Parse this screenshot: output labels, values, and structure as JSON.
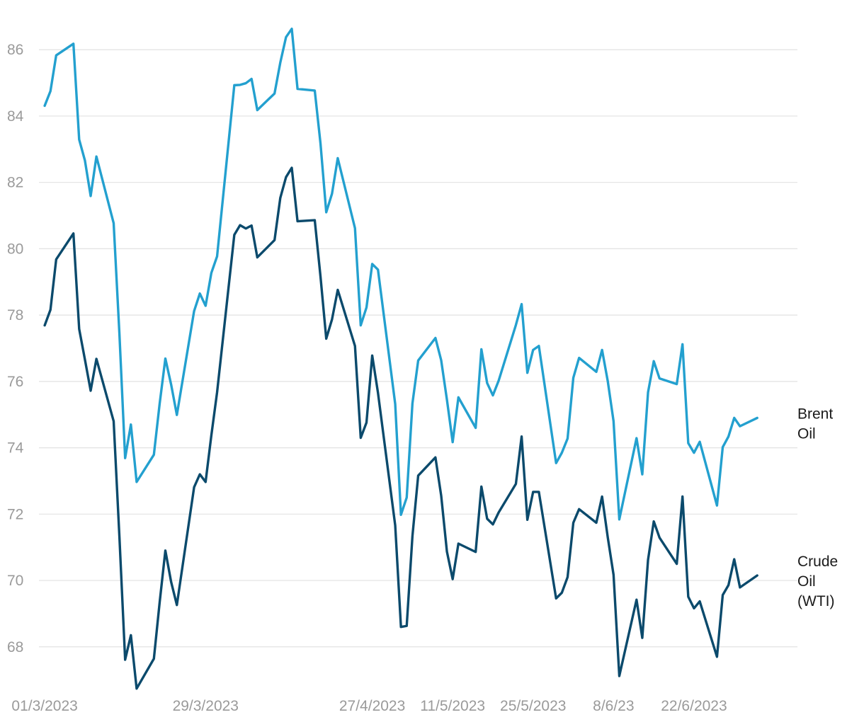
{
  "chart_data": {
    "type": "line",
    "title": "",
    "xlabel": "",
    "ylabel": "",
    "ylim": [
      66.8,
      87.2
    ],
    "yticks": [
      68,
      70,
      72,
      74,
      76,
      78,
      80,
      82,
      84,
      86
    ],
    "grid": "horizontal",
    "legend": "none",
    "xlim": [
      "2023-02-28",
      "2023-07-10"
    ],
    "xticks": [
      {
        "date": "2023-03-01",
        "label": "01/3/2023"
      },
      {
        "date": "2023-03-29",
        "label": "29/3/2023"
      },
      {
        "date": "2023-04-27",
        "label": "27/4/2023"
      },
      {
        "date": "2023-05-11",
        "label": "11/5/2023"
      },
      {
        "date": "2023-05-25",
        "label": "25/5/2023"
      },
      {
        "date": "2023-06-08",
        "label": "8/6/23"
      },
      {
        "date": "2023-06-22",
        "label": "22/6/2023"
      }
    ],
    "x": [
      "2023-03-01",
      "2023-03-02",
      "2023-03-03",
      "2023-03-06",
      "2023-03-07",
      "2023-03-08",
      "2023-03-09",
      "2023-03-10",
      "2023-03-13",
      "2023-03-14",
      "2023-03-15",
      "2023-03-16",
      "2023-03-17",
      "2023-03-20",
      "2023-03-21",
      "2023-03-22",
      "2023-03-23",
      "2023-03-24",
      "2023-03-27",
      "2023-03-28",
      "2023-03-29",
      "2023-03-30",
      "2023-03-31",
      "2023-04-03",
      "2023-04-04",
      "2023-04-05",
      "2023-04-06",
      "2023-04-07",
      "2023-04-10",
      "2023-04-11",
      "2023-04-12",
      "2023-04-13",
      "2023-04-14",
      "2023-04-17",
      "2023-04-18",
      "2023-04-19",
      "2023-04-20",
      "2023-04-21",
      "2023-04-24",
      "2023-04-25",
      "2023-04-26",
      "2023-04-27",
      "2023-04-28",
      "2023-05-01",
      "2023-05-02",
      "2023-05-03",
      "2023-05-04",
      "2023-05-05",
      "2023-05-08",
      "2023-05-09",
      "2023-05-10",
      "2023-05-11",
      "2023-05-12",
      "2023-05-15",
      "2023-05-16",
      "2023-05-17",
      "2023-05-18",
      "2023-05-19",
      "2023-05-22",
      "2023-05-23",
      "2023-05-24",
      "2023-05-25",
      "2023-05-26",
      "2023-05-29",
      "2023-05-30",
      "2023-05-31",
      "2023-06-01",
      "2023-06-02",
      "2023-06-05",
      "2023-06-06",
      "2023-06-07",
      "2023-06-08",
      "2023-06-09",
      "2023-06-12",
      "2023-06-13",
      "2023-06-14",
      "2023-06-15",
      "2023-06-16",
      "2023-06-19",
      "2023-06-20",
      "2023-06-21",
      "2023-06-22",
      "2023-06-23",
      "2023-06-26",
      "2023-06-27",
      "2023-06-28",
      "2023-06-29",
      "2023-06-30",
      "2023-07-03",
      "2023-07-04",
      "2023-07-05",
      "2023-07-06",
      "2023-07-07"
    ],
    "series": [
      {
        "name": "Brent Oil",
        "color": "#23a0cf",
        "values": [
          84.31,
          84.75,
          85.83,
          86.18,
          83.29,
          82.66,
          81.59,
          82.78,
          80.77,
          77.45,
          73.69,
          74.7,
          72.97,
          73.79,
          75.32,
          76.69,
          75.91,
          74.99,
          78.12,
          78.65,
          78.28,
          79.27,
          79.77,
          84.93,
          84.94,
          84.99,
          85.12,
          84.18,
          84.68,
          85.61,
          86.38,
          86.63,
          84.82,
          84.77,
          83.17,
          81.1,
          81.66,
          82.73,
          80.62,
          77.69,
          78.23,
          79.54,
          79.37,
          75.32,
          71.98,
          72.5,
          75.34,
          76.63,
          77.31,
          76.64,
          75.45,
          74.17,
          75.52,
          74.6,
          76.97,
          75.95,
          75.58,
          76.02,
          77.7,
          78.33,
          76.26,
          76.95,
          77.07,
          73.54,
          73.85,
          74.28,
          76.11,
          76.71,
          76.29,
          76.95,
          76.0,
          74.8,
          71.84,
          74.29,
          73.2,
          75.67,
          76.61,
          76.09,
          75.92,
          77.12,
          74.14,
          73.85,
          74.18,
          72.26,
          74.02,
          74.34,
          74.9,
          74.65,
          74.9,
          null,
          null,
          null,
          null
        ]
      },
      {
        "name": "Crude Oil (WTI)",
        "color": "#0b4a6c",
        "values": [
          77.69,
          78.16,
          79.68,
          80.46,
          77.58,
          76.66,
          75.72,
          76.68,
          74.8,
          71.33,
          67.61,
          68.35,
          66.74,
          67.64,
          69.33,
          70.9,
          69.96,
          69.26,
          72.81,
          73.2,
          72.97,
          74.37,
          75.67,
          80.42,
          80.71,
          80.61,
          80.7,
          79.74,
          80.26,
          81.53,
          82.16,
          82.44,
          80.83,
          80.86,
          79.16,
          77.29,
          77.87,
          78.76,
          77.07,
          74.3,
          74.76,
          76.78,
          75.66,
          71.66,
          68.6,
          68.63,
          71.34,
          73.16,
          73.71,
          72.56,
          70.87,
          70.04,
          71.11,
          70.86,
          72.83,
          71.86,
          71.69,
          72.05,
          72.91,
          74.34,
          71.83,
          72.67,
          72.67,
          69.46,
          69.63,
          70.1,
          71.74,
          72.15,
          71.74,
          72.53,
          71.29,
          70.17,
          67.12,
          69.42,
          68.27,
          70.62,
          71.78,
          71.29,
          70.5,
          72.53,
          69.51,
          69.16,
          69.37,
          67.7,
          69.56,
          69.86,
          70.64,
          69.79,
          70.15,
          null,
          null,
          null,
          null
        ]
      }
    ],
    "series_labels": [
      {
        "lines": [
          "Brent",
          "Oil"
        ]
      },
      {
        "lines": [
          "Crude",
          "Oil",
          "(WTI)"
        ]
      }
    ]
  }
}
